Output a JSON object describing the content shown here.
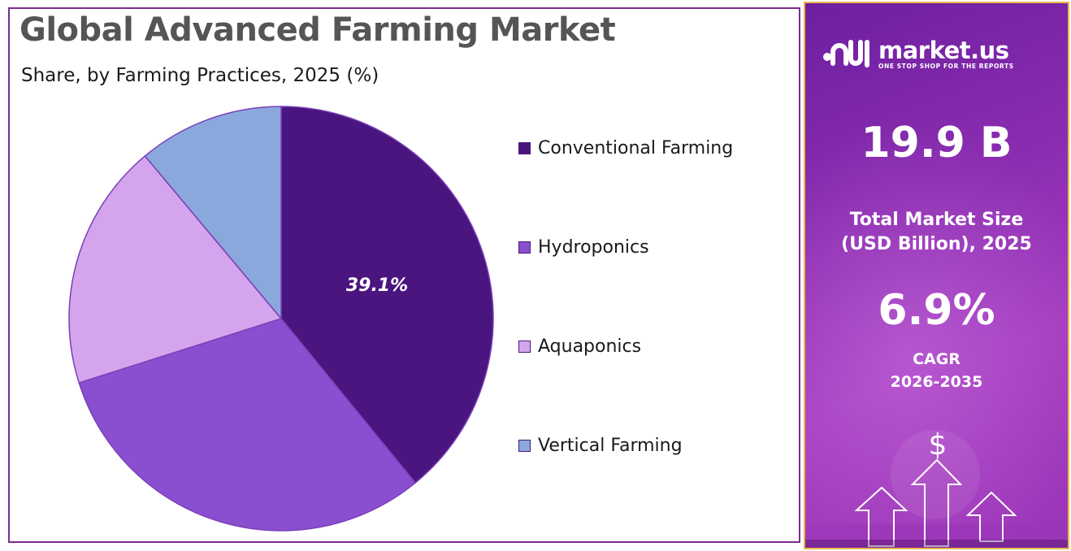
{
  "title": "Global Advanced Farming Market",
  "subtitle": "Share, by Farming Practices, 2025 (%)",
  "chart_data": {
    "type": "pie",
    "title": "Global Advanced Farming Market",
    "subtitle": "Share, by Farming Practices, 2025 (%)",
    "categories": [
      "Conventional Farming",
      "Hydroponics",
      "Aquaponics",
      "Vertical Farming"
    ],
    "values": [
      39.1,
      31.0,
      18.8,
      11.1
    ],
    "unit": "%",
    "colors": [
      "#4b1580",
      "#8a4fd0",
      "#d4a5ec",
      "#8aa8dc"
    ],
    "data_labels": [
      "39.1%",
      "",
      "",
      ""
    ],
    "legend_position": "right",
    "start_angle": "top, clockwise"
  },
  "sidebar": {
    "brand_name": "market.us",
    "brand_tagline": "ONE STOP SHOP FOR THE REPORTS",
    "market_size_value": "19.9 B",
    "market_size_label_line1": "Total Market Size",
    "market_size_label_line2": "(USD Billion), 2025",
    "cagr_value": "6.9%",
    "cagr_label_line1": "CAGR",
    "cagr_label_line2": "2026-2035",
    "currency_symbol": "$",
    "accent_border_color": "#e8b84a"
  }
}
